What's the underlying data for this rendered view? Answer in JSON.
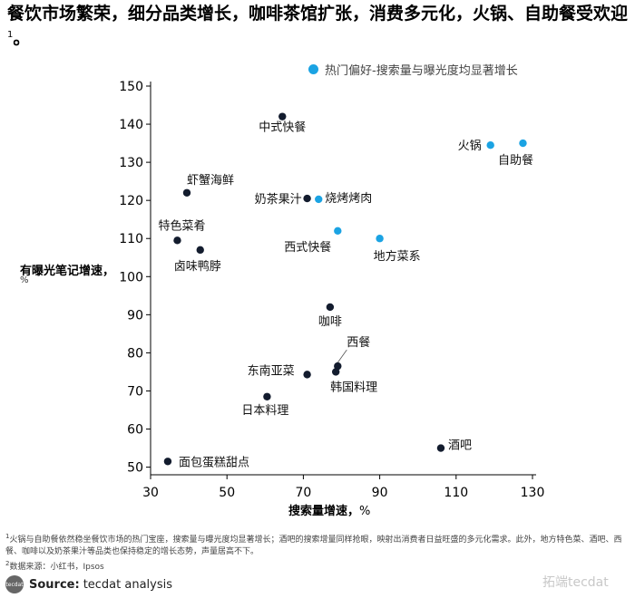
{
  "title": "餐饮市场繁荣，细分品类增长，咖啡茶馆扩张，消费多元化，火锅、自助餐受欢迎",
  "title_sup": "1",
  "legend_label": "热门偏好-搜索量与曝光度均显著增长",
  "ylabel": "有曝光笔记增速，",
  "ylabel_unit": "%",
  "xlabel_bold": "搜索量增速，",
  "xlabel_unit": "%",
  "footnote1_sup": "1",
  "footnote1": "火锅与自助餐依然稳坐餐饮市场的热门宝座，搜索量与曝光度均显著增长；酒吧的搜索增量同样抢眼，映射出消费者日益旺盛的多元化需求。此外，地方特色菜、酒吧、西餐、咖啡以及奶茶果汁等品类也保持稳定的增长态势，声量居高不下。",
  "footnote2_sup": "2",
  "footnote2": "数据来源：小红书，Ipsos",
  "source_logo": "tecdat",
  "source_label": "Source:",
  "source_text": "tecdat analysis",
  "watermark": "拓端tecdat",
  "colors": {
    "highlight": "#1ba3e3",
    "normal": "#131c2e",
    "axis": "#000000"
  },
  "chart_data": {
    "type": "scatter",
    "xlabel": "搜索量增速，%",
    "ylabel": "有曝光笔记增速，%",
    "xlim": [
      30,
      130
    ],
    "ylim": [
      48,
      150
    ],
    "xticks": [
      30,
      50,
      70,
      90,
      110,
      130
    ],
    "yticks": [
      50,
      60,
      70,
      80,
      90,
      100,
      110,
      120,
      130,
      140,
      150
    ],
    "grid": false,
    "legend": "top-right",
    "points": [
      {
        "label": "中式快餐",
        "x": 64.5,
        "y": 142,
        "highlight": false
      },
      {
        "label": "火锅",
        "x": 119,
        "y": 134.5,
        "highlight": true
      },
      {
        "label": "自助餐",
        "x": 127.5,
        "y": 135,
        "highlight": true
      },
      {
        "label": "虾蟹海鲜",
        "x": 39.5,
        "y": 122,
        "highlight": false
      },
      {
        "label": "奶茶果汁",
        "x": 71,
        "y": 120.5,
        "highlight": false
      },
      {
        "label": "烧烤烤肉",
        "x": 74,
        "y": 120.3,
        "highlight": true
      },
      {
        "label": "特色菜肴",
        "x": 37,
        "y": 109.5,
        "highlight": false
      },
      {
        "label": "卤味鸭脖",
        "x": 43,
        "y": 107,
        "highlight": false
      },
      {
        "label": "西式快餐",
        "x": 79,
        "y": 112,
        "highlight": true
      },
      {
        "label": "地方菜系",
        "x": 90,
        "y": 110,
        "highlight": true
      },
      {
        "label": "咖啡",
        "x": 77,
        "y": 92,
        "highlight": false
      },
      {
        "label": "西餐",
        "x": 79,
        "y": 76.5,
        "highlight": false
      },
      {
        "label": "韩国料理",
        "x": 78.5,
        "y": 75,
        "highlight": false
      },
      {
        "label": "东南亚菜",
        "x": 71,
        "y": 74.3,
        "highlight": false
      },
      {
        "label": "日本料理",
        "x": 60.5,
        "y": 68.5,
        "highlight": false
      },
      {
        "label": "酒吧",
        "x": 106,
        "y": 55,
        "highlight": false
      },
      {
        "label": "面包蛋糕甜点",
        "x": 34.5,
        "y": 51.5,
        "highlight": false
      }
    ]
  }
}
